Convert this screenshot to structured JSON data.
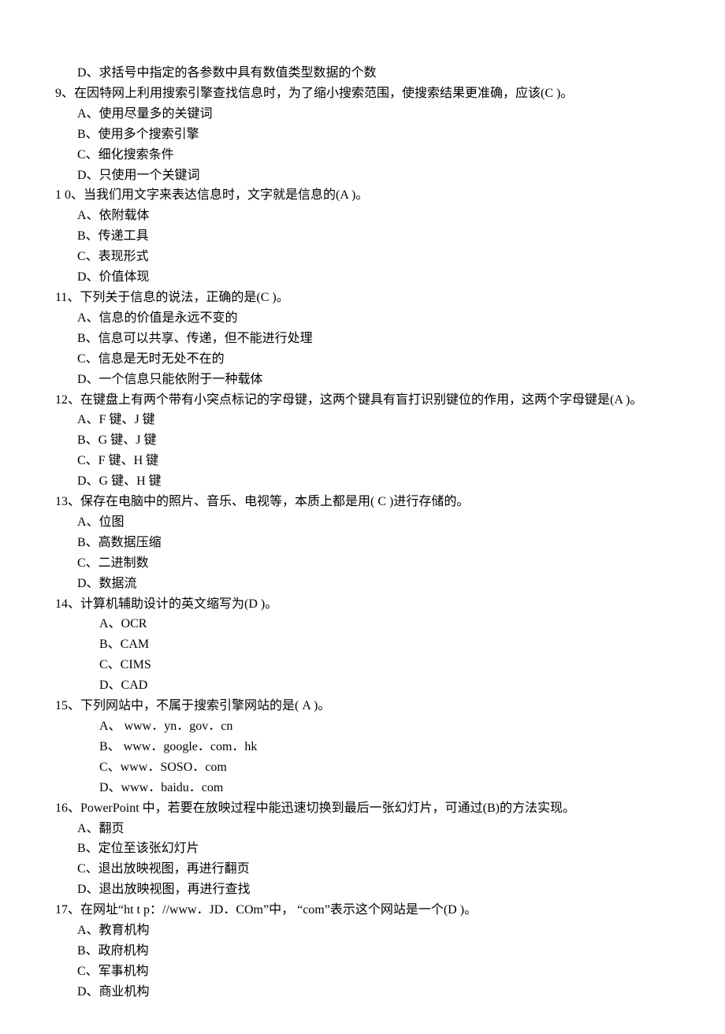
{
  "lines": [
    {
      "cls": "opt",
      "text": "D、求括号中指定的各参数中具有数值类型数据的个数"
    },
    {
      "cls": "q",
      "text": "9、在因特网上利用搜索引擎查找信息时，为了缩小搜索范围，使搜索结果更准确，应该(C )。"
    },
    {
      "cls": "opt",
      "text": "A、使用尽量多的关键词"
    },
    {
      "cls": "opt",
      "text": "B、使用多个搜索引擎"
    },
    {
      "cls": "opt",
      "text": "C、细化搜索条件"
    },
    {
      "cls": "opt",
      "text": "D、只使用一个关键词"
    },
    {
      "cls": "q",
      "text": "1 0、当我们用文字来表达信息时，文字就是信息的(A )。"
    },
    {
      "cls": "opt",
      "text": "A、依附载体"
    },
    {
      "cls": "opt",
      "text": "B、传递工具"
    },
    {
      "cls": "opt",
      "text": "C、表现形式"
    },
    {
      "cls": "opt",
      "text": "D、价值体现"
    },
    {
      "cls": "q",
      "text": "11、下列关于信息的说法，正确的是(C )。"
    },
    {
      "cls": "opt",
      "text": "A、信息的价值是永远不变的"
    },
    {
      "cls": "opt",
      "text": "B、信息可以共享、传递，但不能进行处理"
    },
    {
      "cls": "opt",
      "text": "C、信息是无时无处不在的"
    },
    {
      "cls": "opt",
      "text": "D、一个信息只能依附于一种载体"
    },
    {
      "cls": "q",
      "text": "12、在键盘上有两个带有小突点标记的字母键，这两个键具有盲打识别键位的作用，这两个字母键是(A )。"
    },
    {
      "cls": "opt",
      "text": "A、F 键、J 键"
    },
    {
      "cls": "opt",
      "text": "B、G 键、J 键"
    },
    {
      "cls": "opt",
      "text": "C、F 键、H 键"
    },
    {
      "cls": "opt",
      "text": "D、G 键、H 键"
    },
    {
      "cls": "q",
      "text": "13、保存在电脑中的照片、音乐、电视等，本质上都是用(    C    )进行存储的。"
    },
    {
      "cls": "opt",
      "text": "A、位图"
    },
    {
      "cls": "opt",
      "text": "B、高数据压缩"
    },
    {
      "cls": "opt",
      "text": "C、二进制数"
    },
    {
      "cls": "opt",
      "text": "D、数据流"
    },
    {
      "cls": "q",
      "text": "14、计算机辅助设计的英文缩写为(D )。"
    },
    {
      "cls": "opt-wide",
      "text": "A、OCR"
    },
    {
      "cls": "opt-wide",
      "text": "B、CAM"
    },
    {
      "cls": "opt-wide",
      "text": "C、CIMS"
    },
    {
      "cls": "opt-wide",
      "text": "D、CAD"
    },
    {
      "cls": "q",
      "text": "15、下列网站中，不属于搜索引擎网站的是(   A   )。"
    },
    {
      "cls": "opt-wide",
      "text": "A、   www．yn．gov．cn"
    },
    {
      "cls": "opt-wide",
      "text": "B、   www．google．com．hk"
    },
    {
      "cls": "opt-wide",
      "text": "C、www．SOSO．com"
    },
    {
      "cls": "opt-wide",
      "text": "D、www．baidu．com"
    },
    {
      "cls": "q",
      "text": "16、PowerPoint 中，若要在放映过程中能迅速切换到最后一张幻灯片，可通过(B)的方法实现。"
    },
    {
      "cls": "opt",
      "text": "A、翻页"
    },
    {
      "cls": "opt",
      "text": "B、定位至该张幻灯片"
    },
    {
      "cls": "opt",
      "text": "C、退出放映视图，再进行翻页"
    },
    {
      "cls": "opt",
      "text": "D、退出放映视图，再进行查找"
    },
    {
      "cls": "q",
      "text": "17、在网址“ht t p：//www．JD．COm”中，  “com”表示这个网站是一个(D )。"
    },
    {
      "cls": "opt",
      "text": "A、教育机构"
    },
    {
      "cls": "opt",
      "text": "B、政府机构"
    },
    {
      "cls": "opt",
      "text": "C、军事机构"
    },
    {
      "cls": "opt",
      "text": "D、商业机构"
    }
  ]
}
